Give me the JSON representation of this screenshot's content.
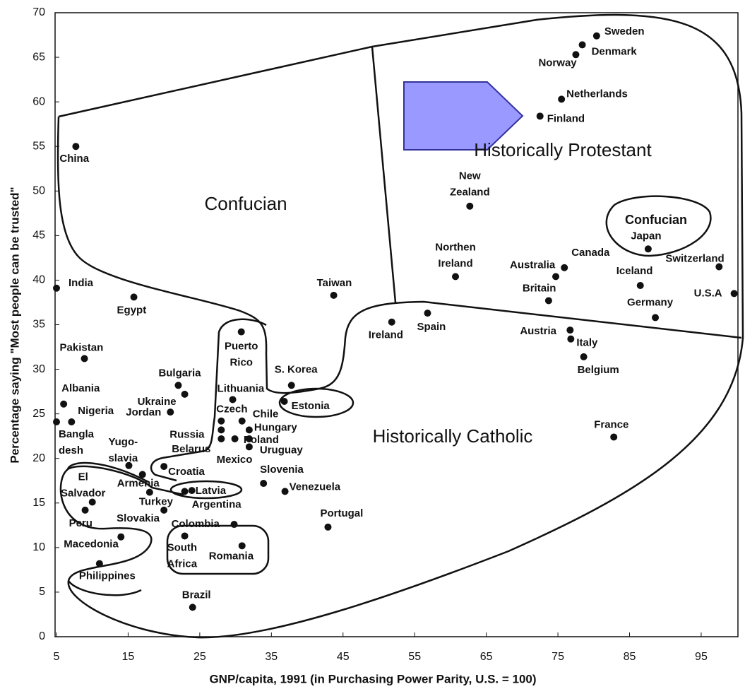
{
  "chart_data": {
    "type": "scatter",
    "xlabel": "GNP/capita, 1991 (in Purchasing Power Parity, U.S. = 100)",
    "ylabel": "Percentage saying \"Most people can be trusted\"",
    "xlim": [
      5,
      100
    ],
    "xticks": [
      5,
      15,
      25,
      35,
      45,
      55,
      65,
      75,
      85,
      95
    ],
    "ylim": [
      0,
      70
    ],
    "yticks": [
      0,
      5,
      10,
      15,
      20,
      25,
      30,
      35,
      40,
      45,
      50,
      55,
      60,
      65,
      70
    ],
    "color": "#111111",
    "annotations": [
      "Confucian",
      "Historically Protestant",
      "Confucian",
      "Historically Catholic"
    ],
    "labels": [
      [
        "Sweden"
      ],
      [
        "Denmark"
      ],
      [
        "Norway"
      ],
      [
        "Netherlands"
      ],
      [
        "Finland"
      ],
      [
        "New",
        "Zealand"
      ],
      [
        "Japan"
      ],
      [
        "Switzerland"
      ],
      [
        "Canada"
      ],
      [
        "Australia"
      ],
      [
        "Northen",
        "Ireland"
      ],
      [
        "Iceland"
      ],
      [
        "U.S.A"
      ],
      [
        "Britain"
      ],
      [
        "Germany"
      ],
      [
        "Spain"
      ],
      [
        "Ireland"
      ],
      [
        "Austria"
      ],
      [
        "Italy"
      ],
      [
        "Belgium"
      ],
      [
        "France"
      ],
      [
        "Taiwan"
      ],
      [
        "China"
      ],
      [
        "India"
      ],
      [
        "Egypt"
      ],
      [
        "Pakistan"
      ],
      [
        "Albania"
      ],
      [
        "Nigeria"
      ],
      [
        "Bangla",
        "desh"
      ],
      [
        "Bulgaria"
      ],
      [
        "Ukraine"
      ],
      [
        "Jordan"
      ],
      [
        "Puerto",
        "Rico"
      ],
      [
        "S. Korea"
      ],
      [
        "Estonia"
      ],
      [
        "Lithuania"
      ],
      [
        "Czech"
      ],
      [
        "Chile"
      ],
      [
        "Hungary"
      ],
      [
        "Russia"
      ],
      [
        "Belarus"
      ],
      [
        "Poland"
      ],
      [
        "Mexico"
      ],
      [
        "Uruguay"
      ],
      [
        "Yugo-",
        "slavia"
      ],
      [
        "Croatia"
      ],
      [
        "Armenia"
      ],
      [
        "Turkey"
      ],
      [
        "El",
        "Salvador"
      ],
      [
        "Latvia"
      ],
      [
        "Argentina"
      ],
      [
        "Slovakia"
      ],
      [
        "Peru"
      ],
      [
        "Slovenia"
      ],
      [
        "Venezuela"
      ],
      [
        "Colombia"
      ],
      [
        "Portugal"
      ],
      [
        "Macedonia"
      ],
      [
        "South",
        "Africa"
      ],
      [
        "Romania"
      ],
      [
        "Philippines"
      ],
      [
        "Brazil"
      ]
    ],
    "x": [
      80.4,
      78.4,
      77.5,
      75.5,
      72.5,
      62.7,
      87.6,
      97.5,
      75.9,
      74.7,
      60.7,
      86.5,
      99.6,
      73.7,
      88.6,
      56.8,
      51.8,
      76.7,
      76.8,
      78.6,
      82.8,
      43.7,
      7.7,
      5.0,
      15.8,
      8.9,
      6.0,
      7.1,
      5.0,
      22.0,
      22.9,
      20.9,
      30.8,
      37.8,
      36.8,
      29.6,
      28.0,
      30.9,
      31.9,
      28.0,
      28.0,
      31.9,
      29.9,
      31.9,
      15.1,
      20.0,
      17.0,
      18.0,
      10.0,
      23.9,
      22.9,
      20.0,
      9.0,
      33.9,
      36.9,
      29.8,
      42.9,
      14.0,
      22.9,
      30.9,
      11.0,
      24.0
    ],
    "values": [
      67.4,
      66.4,
      65.3,
      60.3,
      58.4,
      48.3,
      43.5,
      41.5,
      41.4,
      40.4,
      40.4,
      39.4,
      38.5,
      37.7,
      35.8,
      36.3,
      35.3,
      34.4,
      33.4,
      31.4,
      22.4,
      38.3,
      55.0,
      39.1,
      38.1,
      31.2,
      26.1,
      24.1,
      24.1,
      28.2,
      27.2,
      25.2,
      34.2,
      28.2,
      26.4,
      26.6,
      24.2,
      24.2,
      23.2,
      23.2,
      22.2,
      22.2,
      22.2,
      21.3,
      19.2,
      19.1,
      18.2,
      16.2,
      15.1,
      16.4,
      16.3,
      14.2,
      14.2,
      17.2,
      16.3,
      12.6,
      12.3,
      11.2,
      11.3,
      10.2,
      8.2,
      3.3
    ]
  }
}
